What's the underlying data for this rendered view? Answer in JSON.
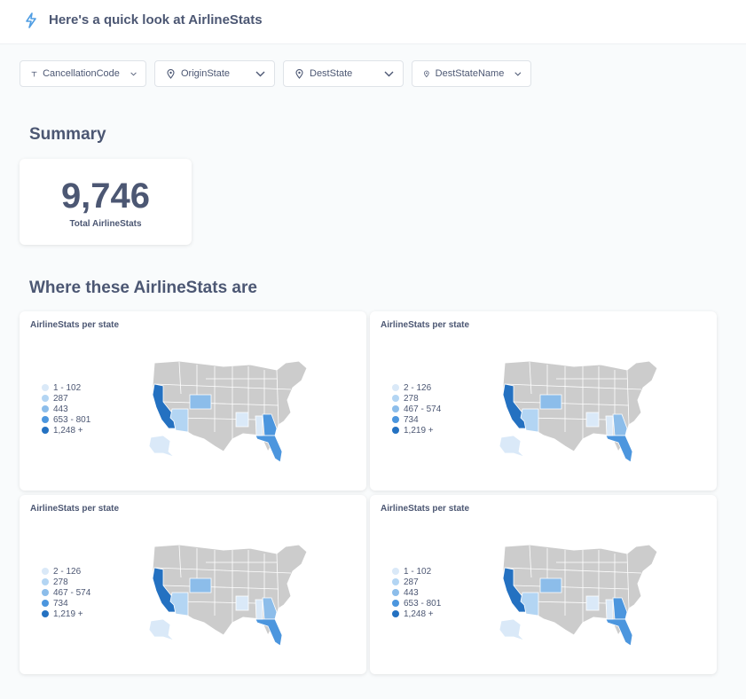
{
  "header": {
    "title": "Here's a quick look at AirlineStats"
  },
  "filters": [
    {
      "label": "CancellationCode",
      "icon": "text-icon"
    },
    {
      "label": "OriginState",
      "icon": "location-icon"
    },
    {
      "label": "DestState",
      "icon": "location-icon"
    },
    {
      "label": "DestStateName",
      "icon": "location-icon"
    }
  ],
  "summary": {
    "title": "Summary",
    "value": "9,746",
    "label": "Total AirlineStats"
  },
  "where": {
    "title": "Where these AirlineStats are"
  },
  "maps": [
    {
      "title": "AirlineStats per state",
      "legend": [
        "1 - 102",
        "287",
        "443",
        "653 - 801",
        "1,248 +"
      ],
      "colors": [
        "#dae9f8",
        "#b3d5f3",
        "#8cbdea",
        "#4c96de",
        "#2471c1"
      ],
      "states": {
        "CA": 4,
        "CO": 2,
        "AZ": 1,
        "AR": 0,
        "GA": 3,
        "FL": 3,
        "AL": 0,
        "AK": 0
      }
    },
    {
      "title": "AirlineStats per state",
      "legend": [
        "2 - 126",
        "278",
        "467 - 574",
        "734",
        "1,219 +"
      ],
      "colors": [
        "#dae9f8",
        "#b3d5f3",
        "#8cbdea",
        "#4c96de",
        "#2471c1"
      ],
      "states": {
        "CA": 4,
        "CO": 2,
        "AZ": 1,
        "AR": 0,
        "GA": 2,
        "FL": 3,
        "AL": 0,
        "AK": 0
      }
    },
    {
      "title": "AirlineStats per state",
      "legend": [
        "2 - 126",
        "278",
        "467 - 574",
        "734",
        "1,219 +"
      ],
      "colors": [
        "#dae9f8",
        "#b3d5f3",
        "#8cbdea",
        "#4c96de",
        "#2471c1"
      ],
      "states": {
        "CA": 4,
        "CO": 2,
        "AZ": 1,
        "AR": 0,
        "GA": 2,
        "FL": 3,
        "AL": 0,
        "AK": 0
      }
    },
    {
      "title": "AirlineStats per state",
      "legend": [
        "1 - 102",
        "287",
        "443",
        "653 - 801",
        "1,248 +"
      ],
      "colors": [
        "#dae9f8",
        "#b3d5f3",
        "#8cbdea",
        "#4c96de",
        "#2471c1"
      ],
      "states": {
        "CA": 4,
        "CO": 2,
        "AZ": 1,
        "AR": 0,
        "GA": 3,
        "FL": 3,
        "AL": 0,
        "AK": 0
      }
    }
  ],
  "accent_color": "#509ee3"
}
